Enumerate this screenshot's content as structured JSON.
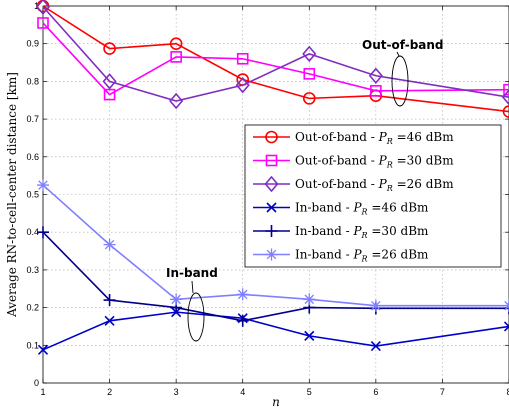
{
  "chart_data": {
    "type": "line",
    "title": "",
    "xlabel": "n",
    "ylabel": "Average RN-to-cell-center distance [km]",
    "xlim": [
      1,
      8
    ],
    "ylim": [
      0,
      1
    ],
    "x_ticks": [
      "1",
      "2",
      "3",
      "4",
      "5",
      "6",
      "7",
      "8"
    ],
    "y_ticks": [
      "0",
      "0.1",
      "0.2",
      "0.3",
      "0.4",
      "0.5",
      "0.6",
      "0.7",
      "0.8",
      "0.9",
      "1"
    ],
    "grid": true,
    "legend_position": "right-middle",
    "x": [
      1,
      2,
      3,
      4,
      5,
      6,
      7,
      8
    ],
    "series": [
      {
        "name": "Out-of-band - P_R =46 dBm",
        "legend_prefix": "Out-of-band - ",
        "legend_var": "P",
        "legend_sub": "R",
        "legend_suffix": " =46 dBm",
        "color": "#ff0000",
        "marker": "circle",
        "values": [
          1.0,
          0.887,
          0.9,
          0.805,
          0.755,
          0.762,
          null,
          0.72
        ]
      },
      {
        "name": "Out-of-band - P_R =30 dBm",
        "legend_prefix": "Out-of-band - ",
        "legend_var": "P",
        "legend_sub": "R",
        "legend_suffix": " =30 dBm",
        "color": "#ff00ff",
        "marker": "square",
        "values": [
          0.955,
          0.765,
          0.865,
          0.86,
          0.82,
          0.775,
          null,
          0.778
        ]
      },
      {
        "name": "Out-of-band - P_R =26 dBm",
        "legend_prefix": "Out-of-band - ",
        "legend_var": "P",
        "legend_sub": "R",
        "legend_suffix": " =26 dBm",
        "color": "#7f2fbf",
        "marker": "diamond",
        "values": [
          0.998,
          0.8,
          0.748,
          0.79,
          0.873,
          0.815,
          null,
          0.758
        ]
      },
      {
        "name": "In-band - P_R =46 dBm",
        "legend_prefix": "In-band - ",
        "legend_var": "P",
        "legend_sub": "R",
        "legend_suffix": " =46 dBm",
        "color": "#0000cc",
        "marker": "x",
        "values": [
          0.088,
          0.165,
          0.188,
          0.172,
          0.125,
          0.098,
          null,
          0.15
        ]
      },
      {
        "name": "In-band - P_R =30 dBm",
        "legend_prefix": "In-band - ",
        "legend_var": "P",
        "legend_sub": "R",
        "legend_suffix": " =30 dBm",
        "color": "#00008b",
        "marker": "plus",
        "values": [
          0.4,
          0.22,
          0.2,
          0.165,
          0.2,
          0.198,
          null,
          0.198
        ]
      },
      {
        "name": "In-band - P_R =26 dBm",
        "legend_prefix": "In-band - ",
        "legend_var": "P",
        "legend_sub": "R",
        "legend_suffix": " =26 dBm",
        "color": "#7f7fff",
        "marker": "star",
        "values": [
          0.525,
          0.367,
          0.222,
          0.235,
          0.222,
          0.205,
          null,
          0.205
        ]
      }
    ],
    "annotations": [
      {
        "text": "Out-of-band",
        "x": 6.3,
        "y": 0.85
      },
      {
        "text": "In-band",
        "x": 3.4,
        "y": 0.255
      }
    ]
  }
}
